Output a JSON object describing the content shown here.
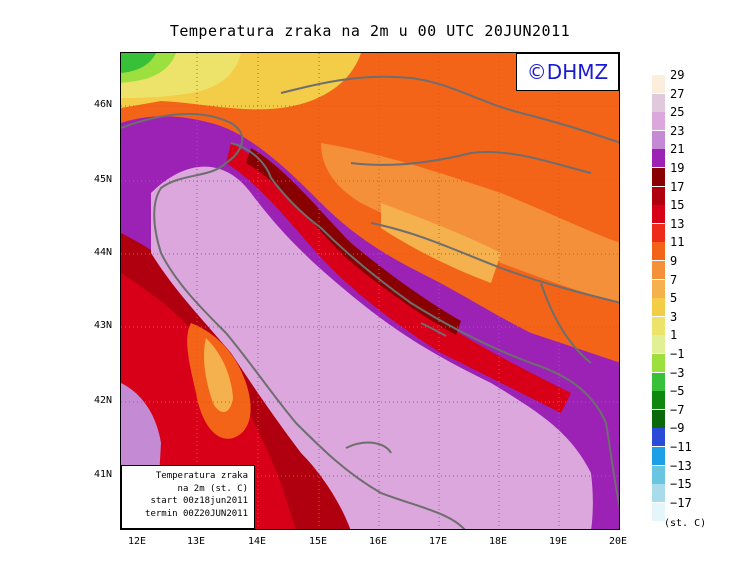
{
  "title": "Temperatura zraka na 2m u 00 UTC 20JUN2011",
  "logo_text": "©DHMZ",
  "info_lines": [
    "Temperatura zraka",
    "na 2m (st. C)",
    "start 00z18jun2011",
    "termin 00Z20JUN2011"
  ],
  "lat_labels": [
    "46N",
    "45N",
    "44N",
    "43N",
    "42N",
    "41N"
  ],
  "lon_labels": [
    "12E",
    "13E",
    "14E",
    "15E",
    "16E",
    "17E",
    "18E",
    "19E",
    "20E"
  ],
  "legend_labels": [
    "29",
    "27",
    "25",
    "23",
    "21",
    "19",
    "17",
    "15",
    "13",
    "11",
    "9",
    "7",
    "5",
    "3",
    "1",
    "−1",
    "−3",
    "−5",
    "−7",
    "−9",
    "−11",
    "−13",
    "−15",
    "−17"
  ],
  "legend_colors": [
    "#fbeedd",
    "#e0c8dd",
    "#dba7dc",
    "#c58ad4",
    "#9b22b4",
    "#880000",
    "#b00010",
    "#d80018",
    "#ee2a1a",
    "#f46418",
    "#f4903a",
    "#f5b14d",
    "#f3cc48",
    "#eee36a",
    "#e1ef95",
    "#9ce040",
    "#38c038",
    "#108810",
    "#0a6a0a",
    "#2a4ad8",
    "#1ea0e6",
    "#6ac6e0",
    "#a8dcea",
    "#e4f6fa"
  ],
  "legend_unit": "(st. C)"
}
